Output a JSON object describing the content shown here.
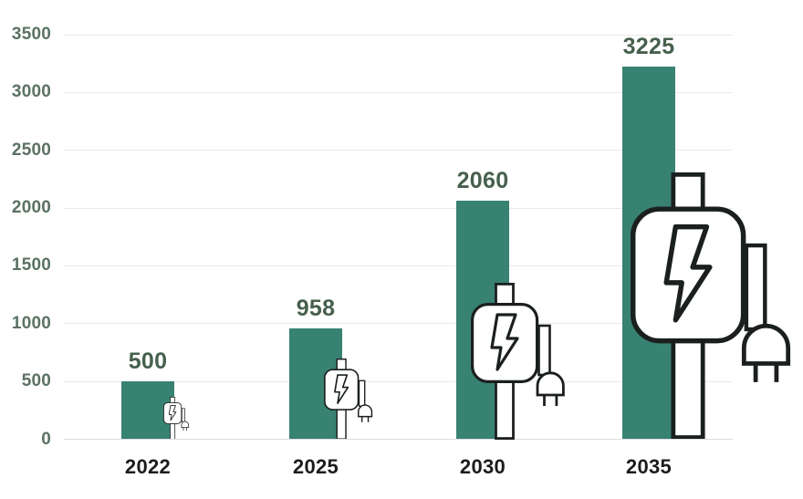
{
  "chart_data": {
    "type": "bar",
    "title": "",
    "xlabel": "",
    "ylabel": "",
    "categories": [
      "2022",
      "2025",
      "2030",
      "2035"
    ],
    "values": [
      500,
      958,
      2060,
      3225
    ],
    "data_labels": [
      "500",
      "958",
      "2060",
      "3225"
    ],
    "ylim": [
      0,
      3500
    ],
    "yticks": [
      0,
      500,
      1000,
      1500,
      2000,
      2500,
      3000,
      3500
    ],
    "ytick_labels": [
      "0",
      "500",
      "1000",
      "1500",
      "2000",
      "2500",
      "3000",
      "3500"
    ],
    "grid": true,
    "legend": false,
    "icon": "ev-charging-station",
    "icon_scales": [
      0.273,
      0.517,
      1.0,
      1.703
    ],
    "colors": {
      "bar": "#388272",
      "data_label": "#47604D",
      "y_tick_label": "#5B7263",
      "x_tick_label": "#1C1C1C",
      "gridline": "#E9E9E9",
      "baseline": "#DDDDDD",
      "icon_stroke": "#1B201F",
      "icon_fill": "#FFFFFF",
      "background": "#FFFFFF"
    }
  }
}
